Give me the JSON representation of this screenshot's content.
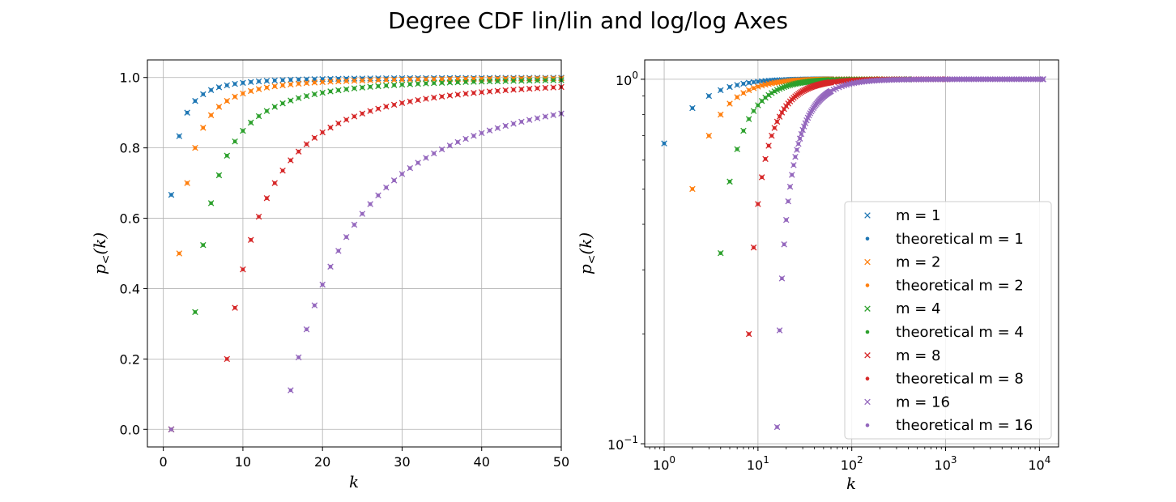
{
  "figure": {
    "title": "Degree CDF lin/lin and log/log Axes"
  },
  "colors": {
    "m1": "#1f77b4",
    "m2": "#ff7f0e",
    "m4": "#2ca02c",
    "m8": "#d62728",
    "m16": "#9467bd"
  },
  "legend": {
    "placement": "lower-right (right panel)",
    "entries": [
      {
        "label": "m = 1",
        "marker": "x",
        "color": "#1f77b4"
      },
      {
        "label": "theoretical m = 1",
        "marker": "dot",
        "color": "#1f77b4"
      },
      {
        "label": "m = 2",
        "marker": "x",
        "color": "#ff7f0e"
      },
      {
        "label": "theoretical m = 2",
        "marker": "dot",
        "color": "#ff7f0e"
      },
      {
        "label": "m = 4",
        "marker": "x",
        "color": "#2ca02c"
      },
      {
        "label": "theoretical m = 4",
        "marker": "dot",
        "color": "#2ca02c"
      },
      {
        "label": "m = 8",
        "marker": "x",
        "color": "#d62728"
      },
      {
        "label": "theoretical m = 8",
        "marker": "dot",
        "color": "#d62728"
      },
      {
        "label": "m = 16",
        "marker": "x",
        "color": "#9467bd"
      },
      {
        "label": "theoretical m = 16",
        "marker": "dot",
        "color": "#9467bd"
      }
    ]
  },
  "chart_data": [
    {
      "type": "scatter",
      "xscale": "linear",
      "yscale": "linear",
      "xlabel": "k",
      "ylabel": "p<(k)",
      "xlim": [
        -2,
        50
      ],
      "ylim": [
        -0.05,
        1.05
      ],
      "xticks": [
        0,
        10,
        20,
        30,
        40,
        50
      ],
      "xtick_labels": [
        "0",
        "10",
        "20",
        "30",
        "40",
        "50"
      ],
      "yticks": [
        0.0,
        0.2,
        0.4,
        0.6,
        0.8,
        1.0
      ],
      "ytick_labels": [
        "0.0",
        "0.2",
        "0.4",
        "0.6",
        "0.8",
        "1.0"
      ],
      "grid": true,
      "series_model": "p<(k) = 1 - m(m+1)/((k+1)(k+2)) for k >= m, plus p<(1) = 0",
      "series": [
        {
          "name": "m = 1",
          "m": 1,
          "k_max": 50
        },
        {
          "name": "m = 2",
          "m": 2,
          "k_max": 50
        },
        {
          "name": "m = 4",
          "m": 4,
          "k_max": 50
        },
        {
          "name": "m = 8",
          "m": 8,
          "k_max": 50
        },
        {
          "name": "m = 16",
          "m": 16,
          "k_max": 50
        }
      ]
    },
    {
      "type": "scatter",
      "xscale": "log",
      "yscale": "log",
      "xlabel": "k",
      "ylabel": "p<(k)",
      "xlim": [
        0.62,
        16000
      ],
      "ylim": [
        0.098,
        1.13
      ],
      "xticks": [
        1,
        10,
        100,
        1000,
        10000
      ],
      "xtick_base": "10",
      "xtick_exponents": [
        "0",
        "1",
        "2",
        "3",
        "4"
      ],
      "yticks": [
        0.1,
        1
      ],
      "ytick_base": "10",
      "ytick_exponents": [
        "−1",
        "0"
      ],
      "grid": true,
      "series": [
        {
          "name": "m = 1",
          "m": 1,
          "k_max": 100
        },
        {
          "name": "m = 2",
          "m": 2,
          "k_max": 200
        },
        {
          "name": "m = 4",
          "m": 4,
          "k_max": 400
        },
        {
          "name": "m = 8",
          "m": 8,
          "k_max": 1000
        },
        {
          "name": "m = 16",
          "m": 16,
          "k_max": 11000
        }
      ]
    }
  ]
}
